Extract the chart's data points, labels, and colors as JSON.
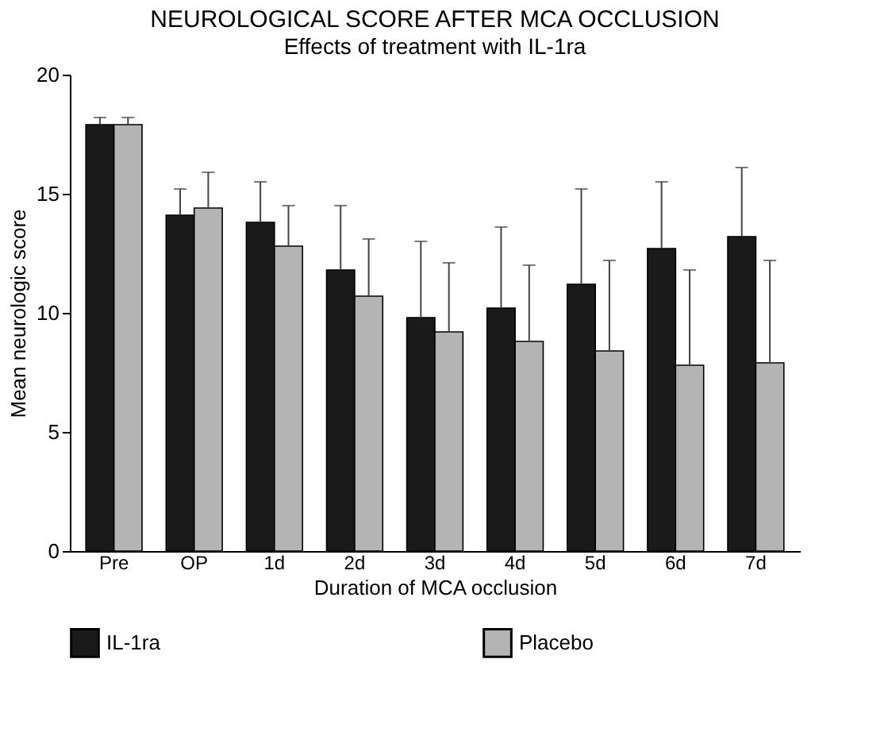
{
  "chart_data": {
    "type": "bar",
    "title": "NEUROLOGICAL SCORE AFTER MCA OCCLUSION",
    "subtitle": "Effects of treatment with IL-1ra",
    "xlabel": "Duration of MCA occlusion",
    "ylabel": "Mean neurologic score",
    "categories": [
      "Pre",
      "OP",
      "1d",
      "2d",
      "3d",
      "4d",
      "5d",
      "6d",
      "7d"
    ],
    "series": [
      {
        "name": "IL-1ra",
        "color": "#1a1a1a",
        "values": [
          17.9,
          14.1,
          13.8,
          11.8,
          9.8,
          10.2,
          11.2,
          12.7,
          13.2
        ],
        "errors": [
          [
            17.9,
            18.2
          ],
          [
            14.1,
            15.2
          ],
          [
            13.8,
            15.5
          ],
          [
            11.8,
            14.5
          ],
          [
            9.8,
            13.0
          ],
          [
            10.2,
            13.6
          ],
          [
            11.2,
            15.2
          ],
          [
            12.7,
            15.5
          ],
          [
            13.2,
            16.1
          ]
        ]
      },
      {
        "name": "Placebo",
        "color": "#b4b4b4",
        "values": [
          17.9,
          14.4,
          12.8,
          10.7,
          9.2,
          8.8,
          8.4,
          7.8,
          7.9
        ],
        "errors": [
          [
            17.9,
            18.2
          ],
          [
            14.4,
            15.9
          ],
          [
            12.8,
            14.5
          ],
          [
            10.7,
            13.1
          ],
          [
            9.2,
            12.1
          ],
          [
            8.8,
            12.0
          ],
          [
            8.4,
            12.2
          ],
          [
            7.8,
            11.8
          ],
          [
            7.9,
            12.2
          ]
        ]
      }
    ],
    "ylim": [
      0,
      20
    ],
    "yticks": [
      0,
      5,
      10,
      15,
      20
    ],
    "grid": false,
    "legend": "bottom"
  }
}
